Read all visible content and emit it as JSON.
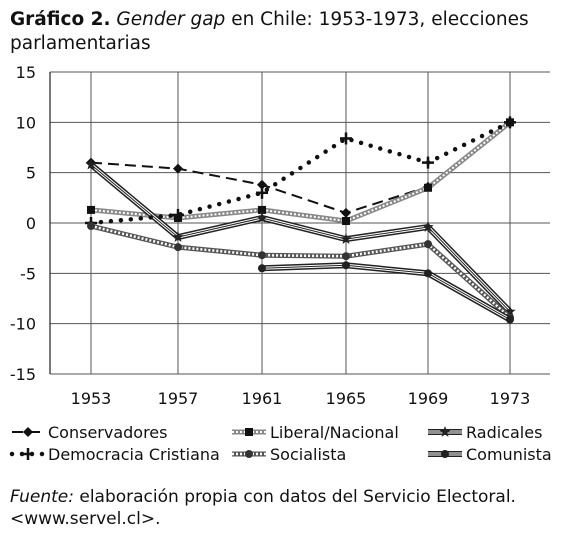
{
  "title": {
    "label": "Gráfico 2.",
    "italic": "Gender gap",
    "rest": " en Chile: 1953-1973, elecciones parlamentarias"
  },
  "source": {
    "label": "Fuente:",
    "text": " elaboración propia con datos del Servicio Electoral. <www.servel.cl>."
  },
  "chart_data": {
    "type": "line",
    "x": [
      "1953",
      "1957",
      "1961",
      "1965",
      "1969",
      "1973"
    ],
    "ylim": [
      -15,
      15
    ],
    "yticks": [
      15,
      10,
      5,
      0,
      -5,
      -10,
      -15
    ],
    "grid": {
      "x": true,
      "y": true
    },
    "legend_position": "bottom",
    "series": [
      {
        "name": "Conservadores",
        "values": [
          6,
          5.4,
          3.8,
          1,
          3.6,
          10
        ],
        "style": "dash",
        "marker": "diamond",
        "color": "#111111"
      },
      {
        "name": "Liberal/Nacional",
        "values": [
          1.3,
          0.5,
          1.3,
          0.2,
          3.5,
          10
        ],
        "style": "hollow",
        "marker": "square",
        "color": "#777777"
      },
      {
        "name": "Radicales",
        "values": [
          5.8,
          -1.4,
          0.5,
          -1.6,
          -0.4,
          -8.8
        ],
        "style": "triple",
        "marker": "star",
        "color": "#222222"
      },
      {
        "name": "Democracia Cristiana",
        "values": [
          0,
          0.8,
          3,
          8.4,
          6,
          10
        ],
        "style": "dots",
        "marker": "plus",
        "color": "#111111"
      },
      {
        "name": "Socialista",
        "values": [
          -0.3,
          -2.4,
          -3.2,
          -3.3,
          -2.1,
          -9.4
        ],
        "style": "dotted-thick",
        "marker": "circle",
        "color": "#333333"
      },
      {
        "name": "Comunista",
        "values": [
          null,
          null,
          -4.5,
          -4.2,
          -5,
          -9.6
        ],
        "style": "triple",
        "marker": "circle",
        "color": "#222222"
      }
    ]
  }
}
